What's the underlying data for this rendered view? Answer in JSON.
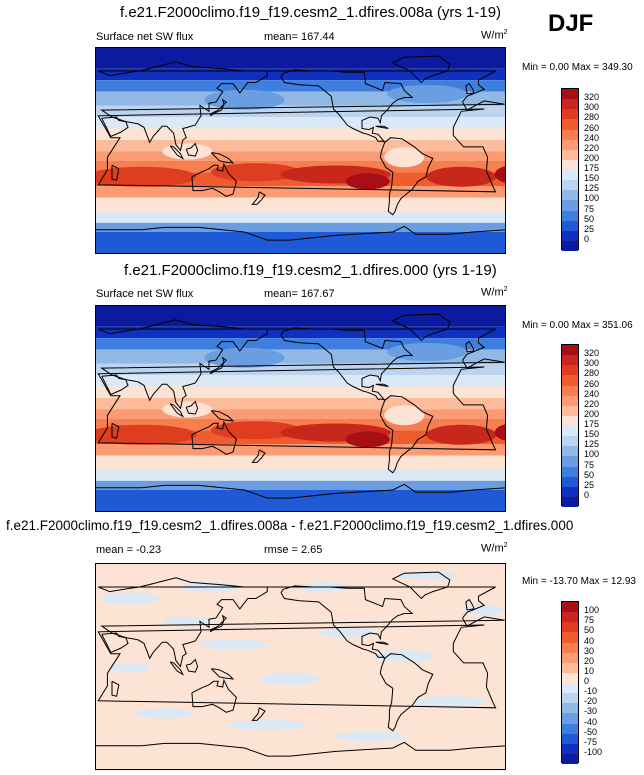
{
  "season": "DJF",
  "panels": [
    {
      "title": "f.e21.F2000climo.f19_f19.cesm2_1.dfires.008a (yrs 1-19)",
      "left": "Surface net SW flux",
      "center": "mean= 167.44",
      "units": "W/m",
      "units_sup": "2",
      "minmax": "Min =   0.00 Max = 349.30",
      "levels": [
        "320",
        "300",
        "280",
        "260",
        "240",
        "220",
        "200",
        "175",
        "150",
        "125",
        "100",
        "75",
        "50",
        "25",
        "0"
      ],
      "colors": [
        "#a50f15",
        "#c8281c",
        "#de3e1f",
        "#ef5c2f",
        "#f67e4f",
        "#fa9b74",
        "#fcbc9c",
        "#fde3d4",
        "#dbe8f6",
        "#bcd4ef",
        "#92b9e6",
        "#6a9ee0",
        "#3d7ede",
        "#1e5ad6",
        "#1030c0",
        "#0b1a9e"
      ]
    },
    {
      "title": "f.e21.F2000climo.f19_f19.cesm2_1.dfires.000 (yrs 1-19)",
      "left": "Surface net SW flux",
      "center": "mean= 167.67",
      "units": "W/m",
      "units_sup": "2",
      "minmax": "Min =   0.00 Max = 351.06",
      "levels": [
        "320",
        "300",
        "280",
        "260",
        "240",
        "220",
        "200",
        "175",
        "150",
        "125",
        "100",
        "75",
        "50",
        "25",
        "0"
      ],
      "colors": [
        "#a50f15",
        "#c8281c",
        "#de3e1f",
        "#ef5c2f",
        "#f67e4f",
        "#fa9b74",
        "#fcbc9c",
        "#fde3d4",
        "#dbe8f6",
        "#bcd4ef",
        "#92b9e6",
        "#6a9ee0",
        "#3d7ede",
        "#1e5ad6",
        "#1030c0",
        "#0b1a9e"
      ]
    },
    {
      "title": "f.e21.F2000climo.f19_f19.cesm2_1.dfires.008a - f.e21.F2000climo.f19_f19.cesm2_1.dfires.000",
      "left": "mean =  -0.23",
      "center": "rmse =   2.65",
      "units": "W/m",
      "units_sup": "2",
      "minmax": "Min = -13.70 Max = 12.93",
      "levels": [
        "100",
        "75",
        "50",
        "40",
        "30",
        "20",
        "10",
        "0",
        "-10",
        "-20",
        "-30",
        "-40",
        "-50",
        "-75",
        "-100"
      ],
      "colors": [
        "#a50f15",
        "#c8281c",
        "#de3e1f",
        "#ef5c2f",
        "#f67e4f",
        "#fa9b74",
        "#fcbc9c",
        "#fde3d4",
        "#dbe8f6",
        "#bcd4ef",
        "#92b9e6",
        "#6a9ee0",
        "#3d7ede",
        "#1e5ad6",
        "#1030c0",
        "#0b1a9e"
      ]
    }
  ]
}
